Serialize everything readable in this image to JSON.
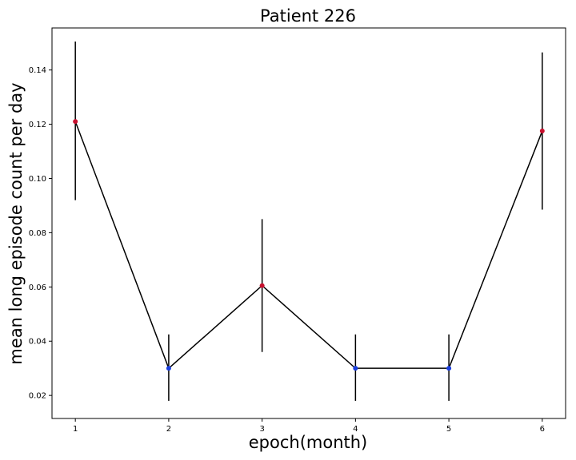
{
  "chart_data": {
    "type": "line",
    "title": "Patient 226",
    "xlabel": "epoch(month)",
    "ylabel": "mean long episode count per day",
    "x": [
      1,
      2,
      3,
      4,
      5,
      6
    ],
    "series": [
      {
        "values": [
          0.121,
          0.03,
          0.0605,
          0.03,
          0.03,
          0.1175
        ],
        "err_low": [
          0.092,
          0.018,
          0.036,
          0.018,
          0.018,
          0.0885
        ],
        "err_high": [
          0.1505,
          0.0425,
          0.085,
          0.0425,
          0.0425,
          0.1465
        ],
        "marker_colors": [
          "#c8102e",
          "#1a3fe0",
          "#c8102e",
          "#1a3fe0",
          "#1a3fe0",
          "#c8102e"
        ],
        "line_color": "#000000"
      }
    ],
    "xticks": [
      1,
      2,
      3,
      4,
      5,
      6
    ],
    "yticks": [
      0.02,
      0.04,
      0.06,
      0.08,
      0.1,
      0.12,
      0.14
    ],
    "ytick_labels": [
      "0.02",
      "0.04",
      "0.06",
      "0.08",
      "0.10",
      "0.12",
      "0.14"
    ],
    "xlim": [
      0.75,
      6.25
    ],
    "ylim": [
      0.0115,
      0.1555
    ],
    "grid": false,
    "legend": false
  }
}
